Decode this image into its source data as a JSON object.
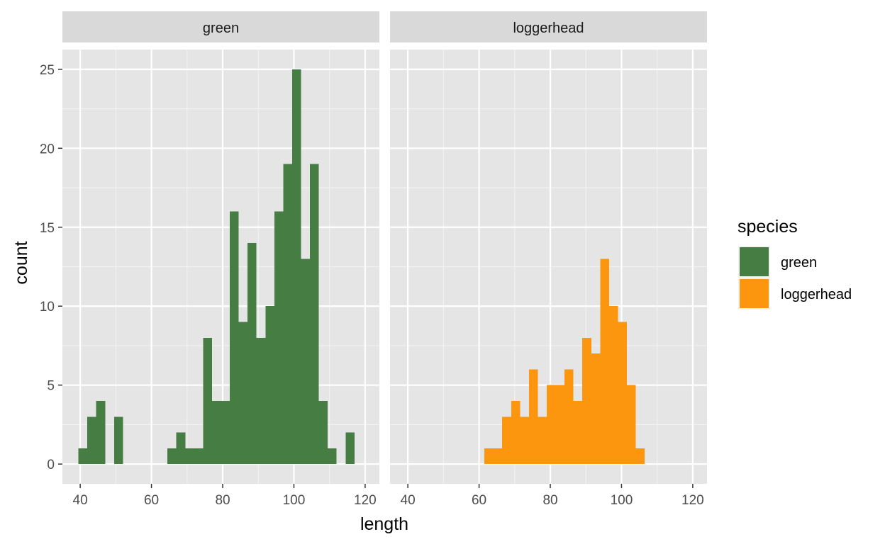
{
  "chart_data": {
    "type": "bar",
    "subtype": "faceted-histogram",
    "xlabel": "length",
    "ylabel": "count",
    "xlim": [
      35,
      124
    ],
    "ylim": [
      -1.25,
      26.25
    ],
    "x_ticks": [
      40,
      60,
      80,
      100,
      120
    ],
    "y_ticks": [
      0,
      5,
      10,
      15,
      20,
      25
    ],
    "bin_width": 2.5,
    "grid": true,
    "legend": {
      "title": "species",
      "position": "right",
      "entries": [
        {
          "label": "green",
          "color": "#467D43"
        },
        {
          "label": "loggerhead",
          "color": "#FC960F"
        }
      ]
    },
    "facets": [
      {
        "label": "green",
        "color": "#467D43",
        "bins": [
          {
            "x0": 39.5,
            "x1": 42.0,
            "count": 1
          },
          {
            "x0": 42.0,
            "x1": 44.5,
            "count": 3
          },
          {
            "x0": 44.5,
            "x1": 47.0,
            "count": 4
          },
          {
            "x0": 47.0,
            "x1": 49.5,
            "count": 0
          },
          {
            "x0": 49.5,
            "x1": 52.0,
            "count": 3
          },
          {
            "x0": 52.0,
            "x1": 54.5,
            "count": 0
          },
          {
            "x0": 54.5,
            "x1": 57.0,
            "count": 0
          },
          {
            "x0": 57.0,
            "x1": 59.5,
            "count": 0
          },
          {
            "x0": 59.5,
            "x1": 62.0,
            "count": 0
          },
          {
            "x0": 62.0,
            "x1": 64.5,
            "count": 0
          },
          {
            "x0": 64.5,
            "x1": 67.0,
            "count": 1
          },
          {
            "x0": 67.0,
            "x1": 69.5,
            "count": 2
          },
          {
            "x0": 69.5,
            "x1": 72.0,
            "count": 1
          },
          {
            "x0": 72.0,
            "x1": 74.5,
            "count": 1
          },
          {
            "x0": 74.5,
            "x1": 77.0,
            "count": 8
          },
          {
            "x0": 77.0,
            "x1": 79.5,
            "count": 4
          },
          {
            "x0": 79.5,
            "x1": 82.0,
            "count": 4
          },
          {
            "x0": 82.0,
            "x1": 84.5,
            "count": 16
          },
          {
            "x0": 84.5,
            "x1": 87.0,
            "count": 9
          },
          {
            "x0": 87.0,
            "x1": 89.5,
            "count": 14
          },
          {
            "x0": 89.5,
            "x1": 92.0,
            "count": 8
          },
          {
            "x0": 92.0,
            "x1": 94.5,
            "count": 10
          },
          {
            "x0": 94.5,
            "x1": 97.0,
            "count": 16
          },
          {
            "x0": 97.0,
            "x1": 99.5,
            "count": 19
          },
          {
            "x0": 99.5,
            "x1": 102.0,
            "count": 25
          },
          {
            "x0": 102.0,
            "x1": 104.5,
            "count": 13
          },
          {
            "x0": 104.5,
            "x1": 107.0,
            "count": 19
          },
          {
            "x0": 107.0,
            "x1": 109.5,
            "count": 4
          },
          {
            "x0": 109.5,
            "x1": 112.0,
            "count": 1
          },
          {
            "x0": 112.0,
            "x1": 114.5,
            "count": 0
          },
          {
            "x0": 114.5,
            "x1": 117.0,
            "count": 2
          }
        ]
      },
      {
        "label": "loggerhead",
        "color": "#FC960F",
        "bins": [
          {
            "x0": 61.5,
            "x1": 64.0,
            "count": 1
          },
          {
            "x0": 64.0,
            "x1": 66.5,
            "count": 1
          },
          {
            "x0": 66.5,
            "x1": 69.0,
            "count": 3
          },
          {
            "x0": 69.0,
            "x1": 71.5,
            "count": 4
          },
          {
            "x0": 71.5,
            "x1": 74.0,
            "count": 3
          },
          {
            "x0": 74.0,
            "x1": 76.5,
            "count": 6
          },
          {
            "x0": 76.5,
            "x1": 79.0,
            "count": 3
          },
          {
            "x0": 79.0,
            "x1": 81.5,
            "count": 5
          },
          {
            "x0": 81.5,
            "x1": 84.0,
            "count": 5
          },
          {
            "x0": 84.0,
            "x1": 86.5,
            "count": 6
          },
          {
            "x0": 86.5,
            "x1": 89.0,
            "count": 4
          },
          {
            "x0": 89.0,
            "x1": 91.5,
            "count": 8
          },
          {
            "x0": 91.5,
            "x1": 94.0,
            "count": 7
          },
          {
            "x0": 94.0,
            "x1": 96.5,
            "count": 13
          },
          {
            "x0": 96.5,
            "x1": 99.0,
            "count": 10
          },
          {
            "x0": 99.0,
            "x1": 101.5,
            "count": 9
          },
          {
            "x0": 101.5,
            "x1": 104.0,
            "count": 5
          },
          {
            "x0": 104.0,
            "x1": 106.5,
            "count": 1
          }
        ]
      }
    ]
  },
  "colors": {
    "panel_background": "#E5E5E5",
    "strip_background": "#D9D9D9",
    "grid_major": "#FFFFFF",
    "grid_minor": "#F2F2F2"
  }
}
